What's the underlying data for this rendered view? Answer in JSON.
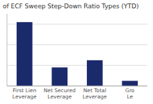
{
  "chart_data": {
    "type": "bar",
    "title": "of ECF Sweep Step-Down Ratio Types (YTD)",
    "categories": [
      "First Lien\nLeverage",
      "Net Secured\nLeverage",
      "Net Total\nLeverage",
      "Gro\nLe"
    ],
    "values": [
      62,
      18,
      25,
      5
    ],
    "color": "#1b2a6b",
    "ylim": [
      0,
      70
    ],
    "yticks": [
      0,
      20,
      40,
      60
    ],
    "grid": true,
    "tick_labels": "x"
  }
}
